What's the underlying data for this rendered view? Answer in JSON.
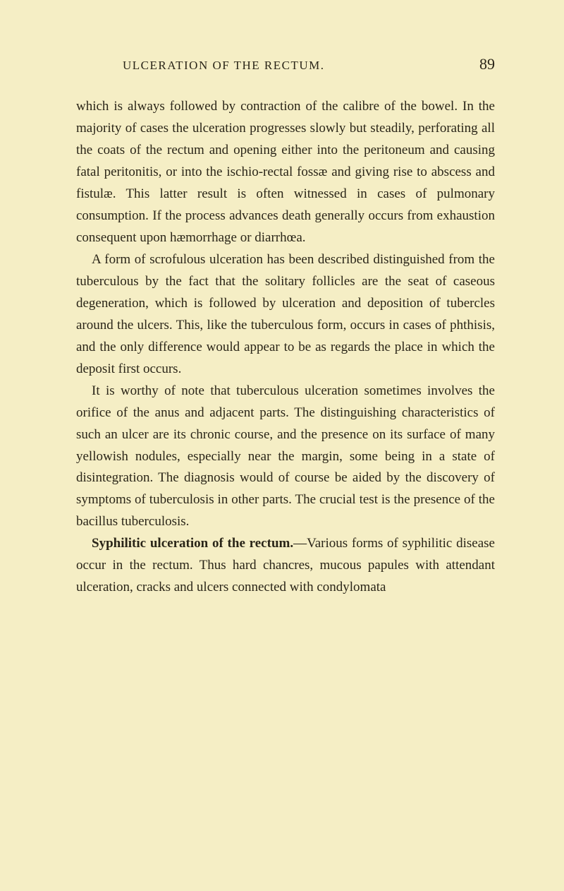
{
  "header": {
    "title": "ULCERATION OF THE RECTUM.",
    "page_number": "89"
  },
  "paragraphs": {
    "p1": "which is always followed by contraction of the calibre of the bowel. In the majority of cases the ulceration progresses slowly but steadily, perforating all the coats of the rectum and opening either into the peri­toneum and causing fatal peritonitis, or into the ischio-rectal fossæ and giving rise to abscess and fistulæ. This latter result is often witnessed in cases of pulmonary consumption. If the process advances death generally occurs from exhaustion consequent upon hæmorrhage or diarrhœa.",
    "p2": "A form of scrofulous ulceration has been described distinguished from the tuberculous by the fact that the solitary follicles are the seat of caseous degenera­tion, which is followed by ulceration and deposition of tubercles around the ulcers. This, like the tuber­culous form, occurs in cases of phthisis, and the only difference would appear to be as regards the place in which the deposit first occurs.",
    "p3": "It is worthy of note that tuberculous ulceration sometimes involves the orifice of the anus and adja­cent parts. The distinguishing characteristics of such an ulcer are its chronic course, and the presence on its surface of many yellowish nodules, especially near the margin, some being in a state of disintegration. The diagnosis would of course be aided by the dis­covery of symptoms of tuberculosis in other parts. The crucial test is the presence of the bacillus tuberculosis.",
    "p4_bold": "Syphilitic ulceration of the rectum.",
    "p4_rest": "—Various forms of syphilitic disease occur in the rectum. Thus hard chancres, mucous papules with attendant ulcera­tion, cracks and ulcers connected with condylomata"
  }
}
